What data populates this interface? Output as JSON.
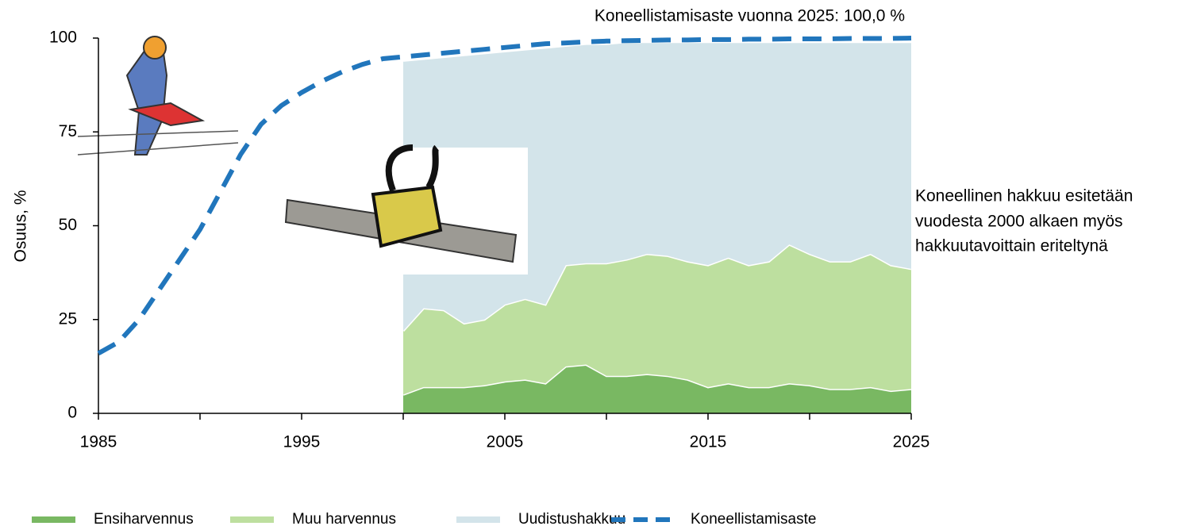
{
  "chart_data": {
    "type": "stacked-area-line",
    "annotation": "Koneellistamisaste vuonna 2025:  100,0 %",
    "note_lines": [
      "Koneellinen hakkuu esitetään",
      "vuodesta 2000 alkaen myös",
      "hakkuutavoittain eriteltynä"
    ],
    "y_label": "Osuus, %",
    "x": [
      1985,
      1986,
      1987,
      1988,
      1989,
      1990,
      1991,
      1992,
      1993,
      1994,
      1995,
      1996,
      1997,
      1998,
      1999,
      2000,
      2001,
      2002,
      2003,
      2004,
      2005,
      2006,
      2007,
      2008,
      2009,
      2010,
      2011,
      2012,
      2013,
      2014,
      2015,
      2016,
      2017,
      2018,
      2019,
      2020,
      2021,
      2022,
      2023,
      2024,
      2025
    ],
    "series": [
      {
        "name": "Ensiharvennus",
        "color": "#79b862",
        "kind": "area",
        "values": [
          null,
          null,
          null,
          null,
          null,
          null,
          null,
          null,
          null,
          null,
          null,
          null,
          null,
          null,
          null,
          5,
          7,
          7,
          7,
          7.5,
          8.5,
          9,
          8,
          12.5,
          13,
          10,
          10,
          10.5,
          10,
          9,
          7,
          8,
          7,
          7,
          8,
          7.5,
          6.5,
          6.5,
          7,
          6,
          6.5
        ]
      },
      {
        "name": "Muu harvennus",
        "color": "#bddf9f",
        "kind": "area",
        "values": [
          null,
          null,
          null,
          null,
          null,
          null,
          null,
          null,
          null,
          null,
          null,
          null,
          null,
          null,
          null,
          17,
          21,
          20.5,
          17,
          17.5,
          20.5,
          21.5,
          21,
          27,
          27,
          30,
          31,
          32,
          32,
          31.5,
          32.5,
          33.5,
          32.5,
          33.5,
          37,
          35,
          34,
          34,
          35.5,
          33.5,
          32
        ]
      },
      {
        "name": "Uudistushakkuu",
        "color": "#d3e4ea",
        "kind": "area",
        "values": [
          null,
          null,
          null,
          null,
          null,
          null,
          null,
          null,
          null,
          null,
          null,
          null,
          null,
          null,
          null,
          72,
          66.5,
          67.5,
          71.5,
          71,
          67.5,
          66.5,
          68.5,
          58.5,
          58.5,
          58.5,
          58,
          56.5,
          57,
          58.5,
          59.5,
          57.5,
          59.5,
          58.5,
          54,
          56.5,
          58.5,
          58.5,
          56.5,
          59.5,
          60.5
        ]
      },
      {
        "name": "Koneellistamisaste",
        "color": "#2176bc",
        "kind": "line",
        "values": [
          16,
          19,
          25,
          33,
          41,
          49,
          59,
          69,
          77,
          82,
          85.5,
          88.5,
          91,
          93,
          94.5,
          95,
          95.5,
          96,
          96.5,
          97,
          97.5,
          98,
          98.5,
          98.7,
          99,
          99.2,
          99.3,
          99.4,
          99.5,
          99.5,
          99.6,
          99.6,
          99.7,
          99.7,
          99.8,
          99.8,
          99.8,
          99.9,
          99.9,
          99.9,
          100
        ]
      }
    ],
    "xlim": [
      1985,
      2025
    ],
    "xticks": [
      1985,
      1995,
      2005,
      2015,
      2025
    ],
    "xminor_ticks": [
      1990,
      2000,
      2010,
      2020
    ],
    "ylim": [
      0,
      100
    ],
    "yticks": [
      0,
      25,
      50,
      75,
      100
    ]
  }
}
